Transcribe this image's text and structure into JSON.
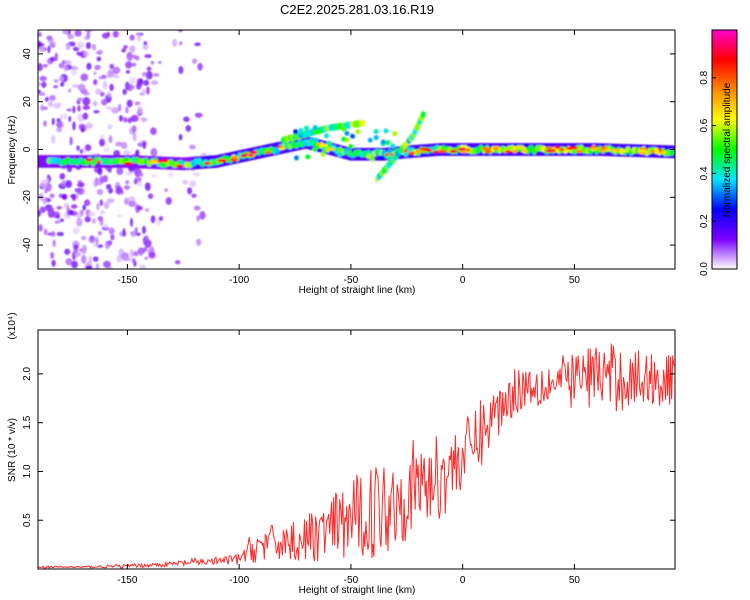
{
  "title": "C2E2.2025.281.03.16.R19",
  "chart_data": [
    {
      "type": "heatmap",
      "xlabel": "Height of straight line (km)",
      "ylabel": "Frequency (Hz)",
      "xlim": [
        -190,
        95
      ],
      "ylim": [
        -50,
        50
      ],
      "xticks": [
        -150,
        -100,
        -50,
        0,
        50
      ],
      "yticks": [
        -40,
        -20,
        0,
        20,
        40
      ],
      "colorbar": {
        "label": "Normalized spectral amplitude",
        "range": [
          0,
          1
        ],
        "ticks": [
          "0.0",
          "0.2",
          "0.4",
          "0.6",
          "0.8"
        ],
        "colors": [
          "#ffffff",
          "#7b00ff",
          "#0000ff",
          "#00e5ff",
          "#00ff00",
          "#ffff00",
          "#ff8800",
          "#ff0000",
          "#ff00cc"
        ]
      },
      "ridge": {
        "main_band_frequency_hz": [
          {
            "x": -190,
            "y": -5
          },
          {
            "x": -150,
            "y": -5
          },
          {
            "x": -125,
            "y": -6
          },
          {
            "x": -110,
            "y": -5
          },
          {
            "x": -90,
            "y": -1
          },
          {
            "x": -70,
            "y": 3
          },
          {
            "x": -50,
            "y": -2
          },
          {
            "x": -35,
            "y": -2
          },
          {
            "x": -25,
            "y": -1
          },
          {
            "x": -10,
            "y": 0
          },
          {
            "x": 0,
            "y": 0
          },
          {
            "x": 25,
            "y": 0
          },
          {
            "x": 60,
            "y": 0
          },
          {
            "x": 95,
            "y": -1
          }
        ],
        "upper_branch_frequency_hz": [
          {
            "x": -80,
            "y": 4
          },
          {
            "x": -60,
            "y": 9
          },
          {
            "x": -45,
            "y": 11
          }
        ],
        "tilted_branch_frequency_hz": [
          {
            "x": -38,
            "y": -12
          },
          {
            "x": -30,
            "y": -3
          },
          {
            "x": -22,
            "y": 6
          },
          {
            "x": -17,
            "y": 16
          }
        ]
      }
    },
    {
      "type": "line",
      "xlabel": "Height of straight line (km)",
      "ylabel": "SNR (10 * v/v)",
      "y_multiplier": "(x10⁴)",
      "xlim": [
        -190,
        95
      ],
      "ylim": [
        0,
        2.45
      ],
      "xticks": [
        -150,
        -100,
        -50,
        0,
        50
      ],
      "yticks": [
        "0.5",
        "1.0",
        "1.5",
        "2.0"
      ],
      "color": "#ff2a2a",
      "series": [
        {
          "x": [
            -190,
            -170,
            -150,
            -140,
            -130,
            -120,
            -110,
            -100,
            -95,
            -90,
            -80,
            -70,
            -60,
            -50,
            -45,
            -40,
            -35,
            -30,
            -25,
            -20,
            -15,
            -10,
            -5,
            0,
            5,
            10,
            15,
            20,
            25,
            30,
            40,
            50,
            60,
            70,
            80,
            90,
            95
          ],
          "y": [
            0.02,
            0.02,
            0.03,
            0.04,
            0.05,
            0.07,
            0.08,
            0.1,
            0.2,
            0.25,
            0.28,
            0.3,
            0.4,
            0.5,
            0.55,
            0.6,
            0.65,
            0.72,
            0.8,
            0.85,
            0.88,
            0.95,
            1.05,
            1.15,
            1.3,
            1.45,
            1.6,
            1.75,
            1.85,
            1.9,
            1.9,
            1.95,
            2.0,
            1.95,
            1.95,
            1.95,
            1.9
          ],
          "noise_amplitude": [
            0.01,
            0.01,
            0.02,
            0.02,
            0.03,
            0.04,
            0.04,
            0.06,
            0.15,
            0.18,
            0.2,
            0.25,
            0.3,
            0.45,
            0.45,
            0.5,
            0.5,
            0.5,
            0.5,
            0.5,
            0.45,
            0.45,
            0.4,
            0.35,
            0.35,
            0.35,
            0.3,
            0.25,
            0.25,
            0.25,
            0.25,
            0.3,
            0.35,
            0.35,
            0.3,
            0.3,
            0.3
          ]
        }
      ]
    }
  ]
}
